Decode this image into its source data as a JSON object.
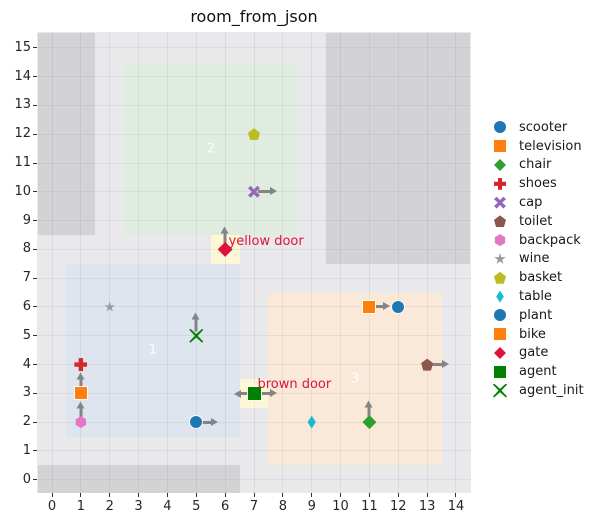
{
  "chart_data": {
    "type": "scatter",
    "title": "room_from_json",
    "xlabel": "",
    "ylabel": "",
    "xlim": [
      -0.52,
      14.52
    ],
    "ylim": [
      -0.46,
      15.55
    ],
    "x_ticks": [
      "0",
      "1",
      "2",
      "3",
      "4",
      "5",
      "6",
      "7",
      "8",
      "9",
      "10",
      "11",
      "12",
      "13",
      "14"
    ],
    "y_ticks": [
      "0",
      "1",
      "2",
      "3",
      "4",
      "5",
      "6",
      "7",
      "8",
      "9",
      "10",
      "11",
      "12",
      "13",
      "14",
      "15"
    ],
    "grid": true,
    "legend_position": "right-outside",
    "axes_bg_color": "#e9e9ec",
    "wall_color": "#d3d3d6",
    "door_fill_color": "#fdf6d7",
    "door_text_color": "#dc143c",
    "walls": [
      {
        "name": "wall-top-left",
        "x0": -0.5,
        "y0": 8.5,
        "x1": 1.5,
        "y1": 15.5
      },
      {
        "name": "wall-top-right",
        "x0": 9.5,
        "y0": 7.5,
        "x1": 14.5,
        "y1": 15.5
      },
      {
        "name": "wall-bottom",
        "x0": -0.5,
        "y0": -0.5,
        "x1": 6.5,
        "y1": 0.5
      }
    ],
    "regions": [
      {
        "label": "1",
        "x0": 0.5,
        "y0": 1.5,
        "x1": 6.5,
        "y1": 7.5,
        "fill": "#dee5ee"
      },
      {
        "label": "2",
        "x0": 2.5,
        "y0": 8.5,
        "x1": 8.5,
        "y1": 14.5,
        "fill": "#e0ecdf"
      },
      {
        "label": "3",
        "x0": 7.5,
        "y0": 0.5,
        "x1": 13.5,
        "y1": 6.5,
        "fill": "#fae8d8"
      }
    ],
    "doors": [
      {
        "label": "yellow door",
        "x0": 5.5,
        "y0": 7.5,
        "x1": 6.5,
        "y1": 8.5,
        "label_at": [
          6.12,
          8.55
        ]
      },
      {
        "label": "brown door",
        "x0": 6.5,
        "y0": 2.5,
        "x1": 7.5,
        "y1": 3.5,
        "label_at": [
          7.12,
          3.58
        ]
      }
    ],
    "objects": [
      {
        "name": "scooter",
        "marker": "circle",
        "color": "#1f77b4",
        "x": 5,
        "y": 2,
        "size": 12,
        "arrows": [
          {
            "dir": "right",
            "len": 0.75
          }
        ]
      },
      {
        "name": "television",
        "marker": "square",
        "color": "#ff7f0e",
        "x": 1,
        "y": 3,
        "size": 12,
        "arrows": [
          {
            "dir": "up",
            "len": 0.72
          }
        ]
      },
      {
        "name": "chair",
        "marker": "diamond",
        "color": "#2ca02c",
        "x": 11,
        "y": 2,
        "size": 14,
        "arrows": [
          {
            "dir": "up",
            "len": 0.75
          }
        ]
      },
      {
        "name": "shoes",
        "marker": "plus",
        "color": "#d62728",
        "x": 1,
        "y": 4,
        "size": 13,
        "arrows": []
      },
      {
        "name": "cap",
        "marker": "x",
        "color": "#9467bd",
        "x": 7,
        "y": 10,
        "size": 12,
        "arrows": [
          {
            "dir": "right",
            "len": 0.8
          }
        ]
      },
      {
        "name": "toilet",
        "marker": "pentagon",
        "color": "#8c564b",
        "x": 13,
        "y": 4,
        "size": 12,
        "arrows": [
          {
            "dir": "right",
            "len": 0.75
          }
        ]
      },
      {
        "name": "backpack",
        "marker": "hexagon",
        "color": "#e377c2",
        "x": 1,
        "y": 2,
        "size": 12,
        "arrows": [
          {
            "dir": "up",
            "len": 0.72
          }
        ]
      },
      {
        "name": "wine",
        "marker": "star",
        "color": "#9b9b9b",
        "x": 2,
        "y": 6,
        "size": 11,
        "arrows": []
      },
      {
        "name": "basket",
        "marker": "pentagon",
        "color": "#bcbd22",
        "x": 7,
        "y": 12,
        "size": 12,
        "arrows": []
      },
      {
        "name": "table",
        "marker": "thin-diamond",
        "color": "#17becf",
        "x": 9,
        "y": 2,
        "size": 13,
        "arrows": []
      },
      {
        "name": "plant",
        "marker": "circle",
        "color": "#1f77b4",
        "x": 12,
        "y": 6,
        "size": 12,
        "arrows": []
      },
      {
        "name": "bike",
        "marker": "square",
        "color": "#ff7f0e",
        "x": 11,
        "y": 6,
        "size": 12,
        "arrows": [
          {
            "dir": "right",
            "len": 0.72
          }
        ]
      },
      {
        "name": "gate",
        "marker": "diamond",
        "color": "#dc143c",
        "x": 6,
        "y": 8,
        "size": 15,
        "arrows": [
          {
            "dir": "up",
            "len": 0.8
          }
        ]
      },
      {
        "name": "agent",
        "marker": "square",
        "color": "#008000",
        "x": 7,
        "y": 3,
        "size": 13,
        "arrows": [
          {
            "dir": "left",
            "len": 0.68
          },
          {
            "dir": "right",
            "len": 0.78
          }
        ]
      },
      {
        "name": "agent_init",
        "marker": "x-line",
        "color": "#008000",
        "x": 5,
        "y": 5,
        "size": 14,
        "arrows": [
          {
            "dir": "up",
            "len": 0.8
          }
        ]
      }
    ],
    "legend": [
      {
        "label": "scooter",
        "marker": "circle",
        "color": "#1f77b4"
      },
      {
        "label": "television",
        "marker": "square",
        "color": "#ff7f0e"
      },
      {
        "label": "chair",
        "marker": "diamond",
        "color": "#2ca02c"
      },
      {
        "label": "shoes",
        "marker": "plus",
        "color": "#d62728"
      },
      {
        "label": "cap",
        "marker": "x",
        "color": "#9467bd"
      },
      {
        "label": "toilet",
        "marker": "pentagon",
        "color": "#8c564b"
      },
      {
        "label": "backpack",
        "marker": "hexagon",
        "color": "#e377c2"
      },
      {
        "label": "wine",
        "marker": "star",
        "color": "#9b9b9b"
      },
      {
        "label": "basket",
        "marker": "pentagon",
        "color": "#bcbd22"
      },
      {
        "label": "table",
        "marker": "thin-diamond",
        "color": "#17becf"
      },
      {
        "label": "plant",
        "marker": "circle",
        "color": "#1f77b4"
      },
      {
        "label": "bike",
        "marker": "square",
        "color": "#ff7f0e"
      },
      {
        "label": "gate",
        "marker": "diamond",
        "color": "#dc143c"
      },
      {
        "label": "agent",
        "marker": "square",
        "color": "#008000"
      },
      {
        "label": "agent_init",
        "marker": "x-line",
        "color": "#008000"
      }
    ],
    "arrow_color": "#848484"
  }
}
